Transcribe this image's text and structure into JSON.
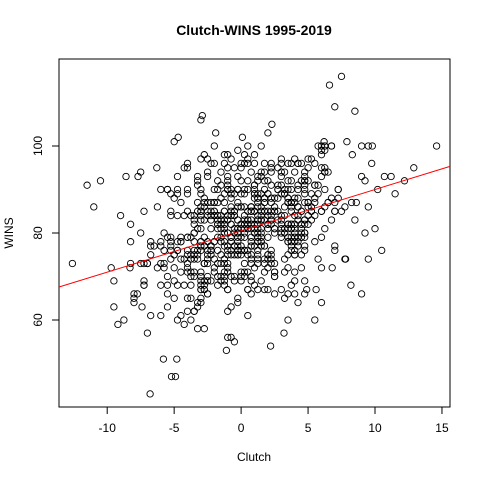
{
  "chart_data": {
    "type": "scatter",
    "title": "Clutch-WINS 1995-2019",
    "xlabel": "Clutch",
    "ylabel": "WINS",
    "xlim": [
      -13.6,
      15.6
    ],
    "ylim": [
      40,
      120
    ],
    "x_ticks": [
      -10,
      -5,
      0,
      5,
      10,
      15
    ],
    "y_ticks": [
      60,
      80,
      100
    ],
    "grid": false,
    "point_color": "#000000",
    "line_color": "#ff0000",
    "regression": {
      "slope": 0.95,
      "intercept": 80.5
    },
    "outliers": [
      {
        "x": -12.6,
        "y": 73
      },
      {
        "x": -11.5,
        "y": 91
      },
      {
        "x": -10.5,
        "y": 92
      },
      {
        "x": -11,
        "y": 86
      },
      {
        "x": -9.5,
        "y": 69
      },
      {
        "x": -9.2,
        "y": 59
      },
      {
        "x": -8.6,
        "y": 93
      },
      {
        "x": -7.7,
        "y": 93
      },
      {
        "x": -8,
        "y": 65
      },
      {
        "x": -7.4,
        "y": 63
      },
      {
        "x": -6.8,
        "y": 43
      },
      {
        "x": -5.8,
        "y": 51
      },
      {
        "x": -5.2,
        "y": 47
      },
      {
        "x": -4.9,
        "y": 47
      },
      {
        "x": -4.8,
        "y": 51
      },
      {
        "x": -5.0,
        "y": 101
      },
      {
        "x": -4.7,
        "y": 102
      },
      {
        "x": -3.0,
        "y": 106
      },
      {
        "x": -2.9,
        "y": 107
      },
      {
        "x": -1.9,
        "y": 103
      },
      {
        "x": -1.1,
        "y": 53
      },
      {
        "x": -0.5,
        "y": 55
      },
      {
        "x": 0.1,
        "y": 102
      },
      {
        "x": 2.0,
        "y": 103
      },
      {
        "x": 2.3,
        "y": 105
      },
      {
        "x": 2.2,
        "y": 54
      },
      {
        "x": 3.2,
        "y": 57
      },
      {
        "x": 4.9,
        "y": 67
      },
      {
        "x": 5.6,
        "y": 67
      },
      {
        "x": 6.6,
        "y": 114
      },
      {
        "x": 7.5,
        "y": 116
      },
      {
        "x": 7.0,
        "y": 109
      },
      {
        "x": 8.5,
        "y": 108
      },
      {
        "x": 8.3,
        "y": 98
      },
      {
        "x": 9.5,
        "y": 100
      },
      {
        "x": 9.8,
        "y": 100
      },
      {
        "x": 9.0,
        "y": 93
      },
      {
        "x": 10.2,
        "y": 90
      },
      {
        "x": 10.7,
        "y": 93
      },
      {
        "x": 11.2,
        "y": 93
      },
      {
        "x": 11.5,
        "y": 89
      },
      {
        "x": 12.2,
        "y": 92
      },
      {
        "x": 12.9,
        "y": 95
      },
      {
        "x": 14.6,
        "y": 100
      },
      {
        "x": 10.0,
        "y": 81
      },
      {
        "x": 10.5,
        "y": 76
      },
      {
        "x": 8.2,
        "y": 68
      },
      {
        "x": 8.6,
        "y": 87
      },
      {
        "x": 7.8,
        "y": 74
      },
      {
        "x": 6.8,
        "y": 72
      },
      {
        "x": 7.9,
        "y": 101
      },
      {
        "x": 6.2,
        "y": 101
      },
      {
        "x": 5.5,
        "y": 60
      },
      {
        "x": -6.3,
        "y": 95
      },
      {
        "x": -9.0,
        "y": 84
      },
      {
        "x": -9.7,
        "y": 72
      },
      {
        "x": -8.3,
        "y": 72
      }
    ],
    "cluster": {
      "count": 720,
      "center_x": 0.5,
      "spread_x": 3.8,
      "spread_y": 9.0,
      "step": 1,
      "xrange": [
        -9.5,
        10.5
      ],
      "yrange": [
        52,
        100
      ]
    }
  }
}
